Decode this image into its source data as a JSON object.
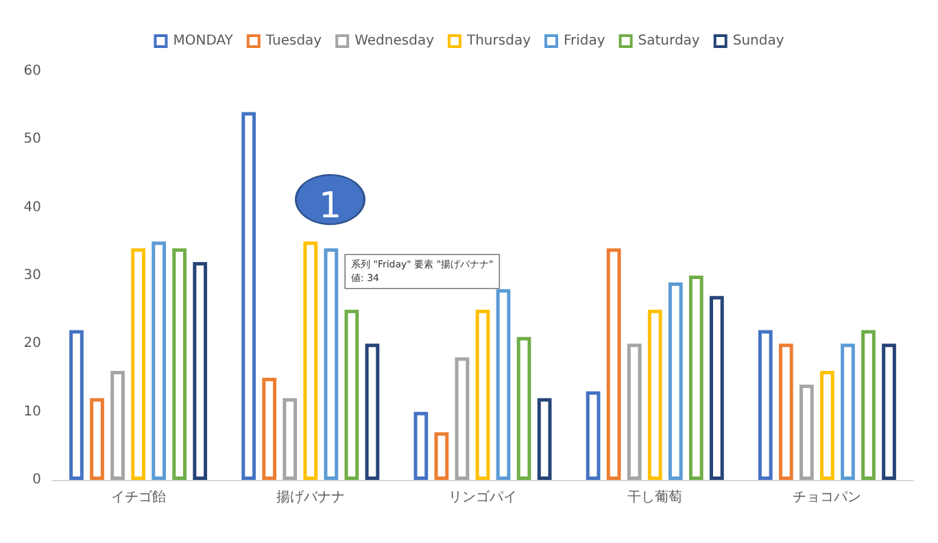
{
  "chart_data": {
    "type": "bar",
    "categories": [
      "イチゴ飴",
      "揚げバナナ",
      "リンゴパイ",
      "干し葡萄",
      "チョコパン"
    ],
    "series": [
      {
        "name": "MONDAY",
        "color": "#4472c4",
        "values": [
          22,
          54,
          10,
          13,
          22
        ]
      },
      {
        "name": "Tuesday",
        "color": "#ed7d31",
        "values": [
          12,
          15,
          7,
          34,
          20
        ]
      },
      {
        "name": "Wednesday",
        "color": "#a5a5a5",
        "values": [
          16,
          12,
          18,
          20,
          14
        ]
      },
      {
        "name": "Thursday",
        "color": "#ffc000",
        "values": [
          34,
          35,
          25,
          25,
          16
        ]
      },
      {
        "name": "Friday",
        "color": "#5b9bd5",
        "values": [
          35,
          34,
          28,
          29,
          20
        ]
      },
      {
        "name": "Saturday",
        "color": "#70ad47",
        "values": [
          34,
          25,
          21,
          30,
          22
        ]
      },
      {
        "name": "Sunday",
        "color": "#264478",
        "values": [
          32,
          20,
          12,
          27,
          20
        ]
      }
    ],
    "ylim": [
      0,
      60
    ],
    "yticks": [
      0,
      10,
      20,
      30,
      40,
      50,
      60
    ],
    "grid": false,
    "legend": "top",
    "annotations": [
      "1",
      "系列 \"Friday\" 要素 \"揚げバナナ\"\n値: 34"
    ]
  }
}
